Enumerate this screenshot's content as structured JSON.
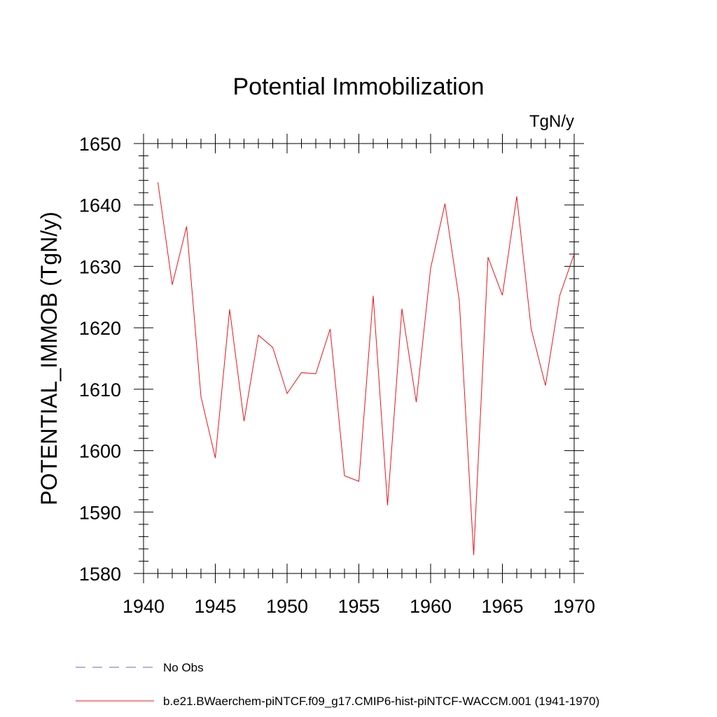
{
  "chart_data": {
    "type": "line",
    "title": "Potential Immobilization",
    "units": "TgN/y",
    "ylabel": "POTENTIAL_IMMOB  (TgN/y)",
    "xlabel": "",
    "xlim": [
      1940,
      1970
    ],
    "ylim": [
      1580,
      1650
    ],
    "xticks": [
      1940,
      1945,
      1950,
      1955,
      1960,
      1965,
      1970
    ],
    "yticks": [
      1580,
      1590,
      1600,
      1610,
      1620,
      1630,
      1640,
      1650
    ],
    "grid": false,
    "legend_position": "bottom-left",
    "series": [
      {
        "name": "No Obs",
        "color": "#6a6ab8",
        "style": "dashed",
        "x": [],
        "y": []
      },
      {
        "name": "b.e21.BWaerchem-piNTCF.f09_g17.CMIP6-hist-piNTCF-WACCM.001 (1941-1970)",
        "color": "#e8141c",
        "style": "solid",
        "x": [
          1941,
          1942,
          1943,
          1944,
          1945,
          1946,
          1947,
          1948,
          1949,
          1950,
          1951,
          1952,
          1953,
          1954,
          1955,
          1956,
          1957,
          1958,
          1959,
          1960,
          1961,
          1962,
          1963,
          1964,
          1965,
          1966,
          1967,
          1968,
          1969,
          1970
        ],
        "y": [
          1643.7,
          1627.0,
          1636.5,
          1608.8,
          1598.8,
          1623.0,
          1604.8,
          1618.8,
          1616.8,
          1609.3,
          1612.7,
          1612.5,
          1619.8,
          1595.9,
          1595.0,
          1625.2,
          1591.1,
          1623.1,
          1607.9,
          1629.7,
          1640.2,
          1624.4,
          1583.0,
          1631.5,
          1625.3,
          1641.4,
          1619.9,
          1610.6,
          1625.3,
          1632.0
        ]
      }
    ]
  }
}
